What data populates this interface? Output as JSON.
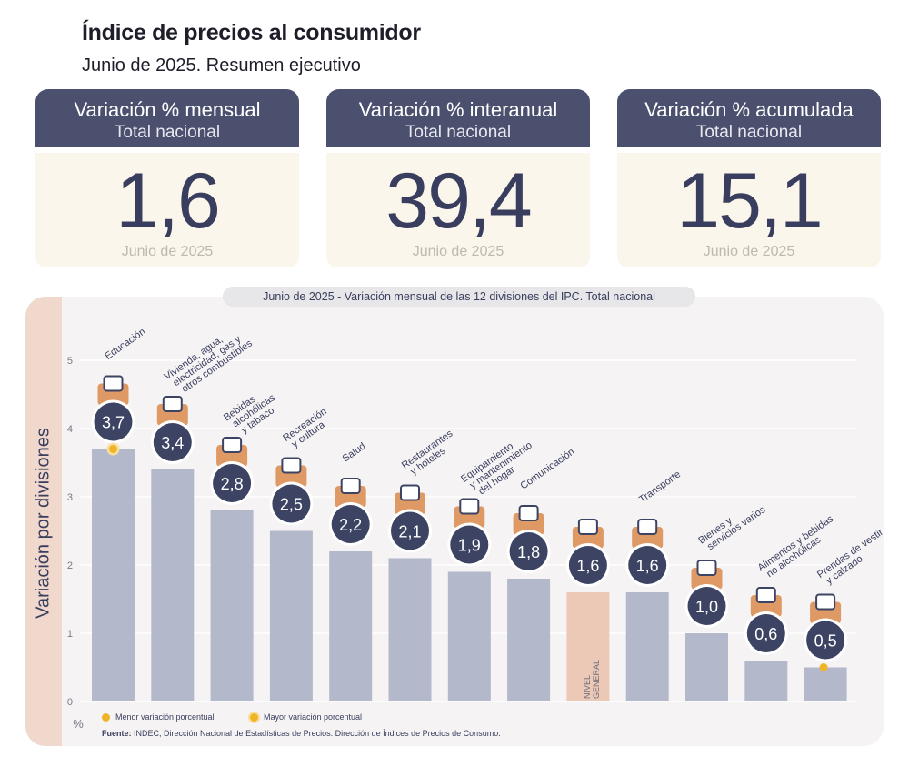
{
  "header": {
    "title": "Índice de precios al consumidor",
    "subtitle": "Junio de 2025. Resumen ejecutivo"
  },
  "cards": [
    {
      "title": "Variación % mensual",
      "sub": "Total nacional",
      "value": "1,6",
      "date": "Junio de 2025"
    },
    {
      "title": "Variación % interanual",
      "sub": "Total nacional",
      "value": "39,4",
      "date": "Junio de 2025"
    },
    {
      "title": "Variación % acumulada",
      "sub": "Total nacional",
      "value": "15,1",
      "date": "Junio de 2025"
    }
  ],
  "chart_data": {
    "type": "bar",
    "title": "Junio de 2025 - Variación mensual de las 12 divisiones del IPC. Total nacional",
    "ylabel": "Variación por divisiones",
    "yunit": "%",
    "ylim": [
      0,
      5
    ],
    "yticks": [
      0,
      1,
      2,
      3,
      4,
      5
    ],
    "grid": true,
    "categories": [
      [
        "Educación"
      ],
      [
        "Vivienda, agua,",
        "electricidad, gas y",
        "otros combustibles"
      ],
      [
        "Bebidas",
        "alcohólicas",
        "y tabaco"
      ],
      [
        "Recreación",
        "y cultura"
      ],
      [
        "Salud"
      ],
      [
        "Restaurantes",
        "y hoteles"
      ],
      [
        "Equipamiento",
        "y mantenimiento",
        "del hogar"
      ],
      [
        "Comunicación"
      ],
      [
        "NIVEL",
        "GENERAL"
      ],
      [
        "Transporte"
      ],
      [
        "Bienes y",
        "servicios varios"
      ],
      [
        "Alimentos y bebidas",
        "no alcohólicas"
      ],
      [
        "Prendas de vestir",
        "y calzado"
      ]
    ],
    "values": [
      3.7,
      3.4,
      2.8,
      2.5,
      2.2,
      2.1,
      1.9,
      1.8,
      1.6,
      1.6,
      1.0,
      0.6,
      0.5
    ],
    "value_labels": [
      "3,7",
      "3,4",
      "2,8",
      "2,5",
      "2,2",
      "2,1",
      "1,9",
      "1,8",
      "1,6",
      "1,6",
      "1,0",
      "0,6",
      "0,5"
    ],
    "icons": [
      "books-icon",
      "house-utilities-icon",
      "wine-bottle-icon",
      "beach-umbrella-icon",
      "first-aid-icon",
      "restaurant-icon",
      "appliance-icon",
      "phone-icon",
      "shopping-basket-icon",
      "transport-icon",
      "comb-icon",
      "food-icon",
      "clothing-icon"
    ],
    "highlight_index": 8,
    "max_marker_index": 0,
    "min_marker_index": 12,
    "colors": {
      "bar": "#b4b8cb",
      "general": "#ecc8b6",
      "badge": "#3d4463",
      "marker": "#f0b428",
      "grid": "#ffffff"
    }
  },
  "legend": {
    "min_label": "Menor variación porcentual",
    "max_label": "Mayor variación porcentual"
  },
  "footer": {
    "source_label": "Fuente:",
    "source_text": "INDEC, Dirección Nacional de Estadísticas de Precios. Dirección de Índices de Precios de Consumo."
  }
}
